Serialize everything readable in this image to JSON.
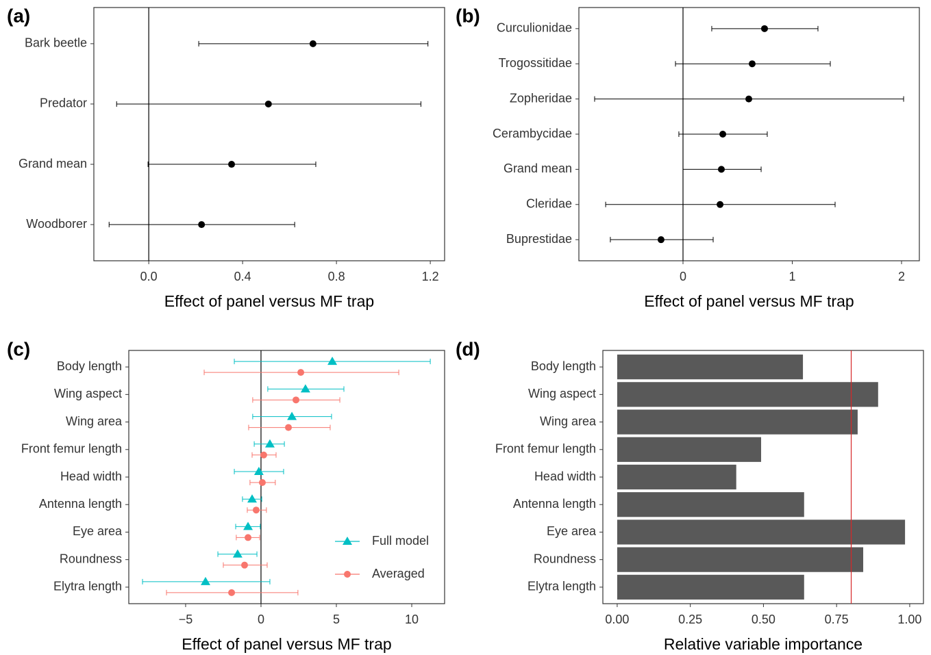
{
  "chart_data": [
    {
      "type": "dot",
      "panel_label": "(a)",
      "x_label": "Effect of panel versus MF trap",
      "categories": [
        "Bark beetle",
        "Predator",
        "Grand mean",
        "Woodborer"
      ],
      "series": [
        {
          "color": "#000000",
          "marker": "circle",
          "values": [
            0.7,
            0.51,
            0.353,
            0.225
          ],
          "lower": [
            0.213,
            -0.137,
            -0.003,
            -0.169
          ],
          "upper": [
            1.19,
            1.16,
            0.712,
            0.622
          ]
        }
      ],
      "xlim": [
        -0.234,
        1.261
      ],
      "xticks": [
        {
          "value": 0,
          "label": "0.0"
        },
        {
          "value": 0.4,
          "label": "0.4"
        },
        {
          "value": 0.8,
          "label": "0.8"
        },
        {
          "value": 1.2,
          "label": "1.2"
        }
      ],
      "reference_line": 0,
      "reference_color": "#000000"
    },
    {
      "type": "dot",
      "panel_label": "(b)",
      "x_label": "Effect of panel versus MF trap",
      "categories": [
        "Curculionidae",
        "Trogossitidae",
        "Zopheridae",
        "Cerambycidae",
        "Grand mean",
        "Cleridae",
        "Buprestidae"
      ],
      "series": [
        {
          "color": "#000000",
          "marker": "circle",
          "values": [
            0.746,
            0.633,
            0.602,
            0.364,
            0.351,
            0.339,
            -0.201
          ],
          "lower": [
            0.263,
            -0.069,
            -0.809,
            -0.038,
            0.0,
            -0.708,
            -0.665
          ],
          "upper": [
            1.235,
            1.348,
            2.019,
            0.771,
            0.715,
            1.392,
            0.276
          ]
        }
      ],
      "xlim": [
        -0.953,
        2.163
      ],
      "xticks": [
        0,
        1,
        2
      ],
      "reference_line": 0,
      "reference_color": "#000000"
    },
    {
      "type": "dot",
      "panel_label": "(c)",
      "x_label": "Effect of panel versus MF trap",
      "categories": [
        "Body length",
        "Wing aspect",
        "Wing area",
        "Front femur length",
        "Head width",
        "Antenna length",
        "Eye area",
        "Roundness",
        "Elytra length"
      ],
      "series": [
        {
          "name": "Full model",
          "color": "#00BFC4",
          "marker": "triangle",
          "values": [
            4.73,
            2.95,
            2.05,
            0.59,
            -0.14,
            -0.59,
            -0.86,
            -1.55,
            -3.68
          ],
          "lower": [
            -1.77,
            0.45,
            -0.55,
            -0.45,
            -1.77,
            -1.23,
            -1.68,
            -2.86,
            -7.86
          ],
          "upper": [
            11.23,
            5.5,
            4.68,
            1.55,
            1.5,
            0.05,
            -0.05,
            -0.27,
            0.59
          ]
        },
        {
          "name": "Averaged",
          "color": "#F8766D",
          "marker": "circle",
          "values": [
            2.64,
            2.32,
            1.82,
            0.18,
            0.09,
            -0.32,
            -0.86,
            -1.09,
            -1.95
          ],
          "lower": [
            -3.77,
            -0.55,
            -0.82,
            -0.59,
            -0.73,
            -0.91,
            -1.64,
            -2.5,
            -6.27
          ],
          "upper": [
            9.14,
            5.23,
            4.59,
            1.0,
            0.95,
            0.36,
            -0.09,
            0.41,
            2.45
          ]
        }
      ],
      "xlim": [
        -8.77,
        12.18
      ],
      "xticks": [
        {
          "value": -5,
          "label": "−5"
        },
        0,
        5,
        10
      ],
      "reference_line": 0,
      "reference_color": "#000000",
      "legend": "lower right"
    },
    {
      "type": "bar",
      "panel_label": "(d)",
      "x_label": "Relative variable importance",
      "categories": [
        "Body length",
        "Wing aspect",
        "Wing area",
        "Front femur length",
        "Head width",
        "Antenna length",
        "Eye area",
        "Roundness",
        "Elytra length"
      ],
      "values": [
        0.635,
        0.892,
        0.822,
        0.492,
        0.407,
        0.639,
        0.984,
        0.841,
        0.639
      ],
      "color": "#595959",
      "xlim": [
        -0.049,
        1.047
      ],
      "xticks": [
        {
          "value": 0,
          "label": "0.00"
        },
        {
          "value": 0.25,
          "label": "0.25"
        },
        {
          "value": 0.5,
          "label": "0.50"
        },
        {
          "value": 0.75,
          "label": "0.75"
        },
        {
          "value": 1,
          "label": "1.00"
        }
      ],
      "reference_line": 0.8,
      "reference_color": "#d62728"
    }
  ]
}
